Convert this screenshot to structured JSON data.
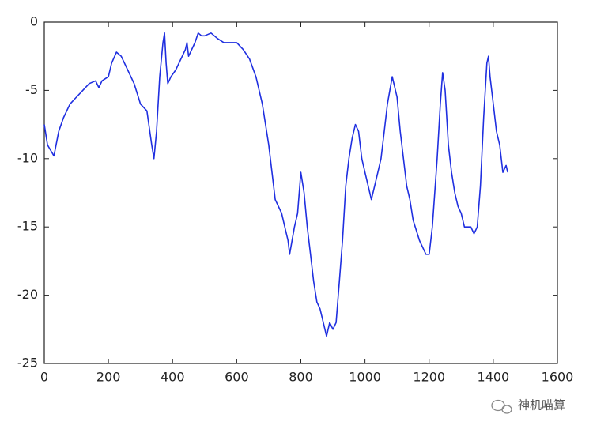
{
  "chart_data": {
    "type": "line",
    "x": [
      0,
      10,
      30,
      45,
      60,
      80,
      100,
      120,
      140,
      160,
      170,
      180,
      200,
      210,
      225,
      240,
      260,
      280,
      300,
      320,
      335,
      342,
      350,
      360,
      370,
      375,
      380,
      385,
      395,
      410,
      420,
      440,
      445,
      450,
      470,
      480,
      490,
      500,
      520,
      540,
      560,
      600,
      620,
      640,
      660,
      680,
      700,
      710,
      720,
      740,
      750,
      760,
      765,
      780,
      790,
      800,
      810,
      820,
      830,
      840,
      850,
      860,
      870,
      880,
      890,
      900,
      910,
      920,
      930,
      940,
      950,
      960,
      970,
      980,
      990,
      1000,
      1010,
      1020,
      1030,
      1040,
      1050,
      1060,
      1070,
      1085,
      1100,
      1110,
      1120,
      1130,
      1140,
      1150,
      1170,
      1190,
      1200,
      1210,
      1225,
      1235,
      1242,
      1250,
      1260,
      1270,
      1280,
      1290,
      1300,
      1310,
      1330,
      1340,
      1350,
      1360,
      1370,
      1380,
      1385,
      1390,
      1400,
      1410,
      1420,
      1425,
      1430,
      1440,
      1445
    ],
    "values": [
      -7.5,
      -9,
      -9.8,
      -8,
      -7,
      -6,
      -5.5,
      -5,
      -4.5,
      -4.3,
      -4.8,
      -4.3,
      -4,
      -3,
      -2.2,
      -2.5,
      -3.5,
      -4.5,
      -6,
      -6.5,
      -9,
      -10,
      -8,
      -4,
      -1.5,
      -0.8,
      -3,
      -4.5,
      -4,
      -3.5,
      -3,
      -2,
      -1.5,
      -2.5,
      -1.5,
      -0.8,
      -1,
      -1,
      -0.8,
      -1.2,
      -1.5,
      -1.5,
      -2,
      -2.7,
      -4,
      -6,
      -9,
      -11,
      -13,
      -14,
      -15,
      -16,
      -17,
      -15,
      -14,
      -11,
      -12.5,
      -15,
      -17,
      -19,
      -20.5,
      -21,
      -22,
      -23,
      -22,
      -22.5,
      -22,
      -19,
      -16,
      -12,
      -10,
      -8.5,
      -7.5,
      -8,
      -10,
      -11,
      -12,
      -13,
      -12,
      -11,
      -10,
      -8,
      -6,
      -4,
      -5.5,
      -8,
      -10,
      -12,
      -13,
      -14.5,
      -16,
      -17,
      -17,
      -15,
      -10,
      -6,
      -3.7,
      -5,
      -9,
      -11,
      -12.5,
      -13.5,
      -14,
      -15,
      -15,
      -15.5,
      -15,
      -12,
      -7,
      -3,
      -2.5,
      -4,
      -6,
      -8,
      -9,
      -10,
      -11,
      -10.5,
      -11
    ],
    "color": "#1f2fe0",
    "xlim": [
      0,
      1600
    ],
    "xticks": [
      0,
      200,
      400,
      600,
      800,
      1000,
      1200,
      1400,
      1600
    ],
    "ylim": [
      -25,
      0
    ],
    "yticks": [
      -25,
      -20,
      -15,
      -10,
      -5,
      0
    ]
  },
  "watermark": "神机喵算"
}
